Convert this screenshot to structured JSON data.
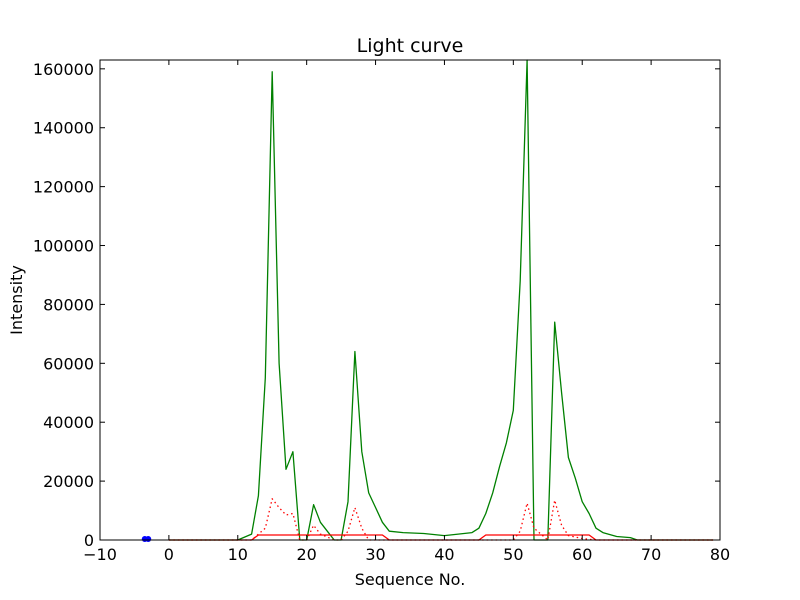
{
  "chart_data": {
    "type": "line",
    "title": "Light curve",
    "xlabel": "Sequence No.",
    "ylabel": "Intensity",
    "xlim": [
      -10,
      80
    ],
    "ylim": [
      0,
      163000
    ],
    "xticks": [
      -10,
      0,
      10,
      20,
      30,
      40,
      50,
      60,
      70,
      80
    ],
    "yticks": [
      0,
      20000,
      40000,
      60000,
      80000,
      100000,
      120000,
      140000,
      160000
    ],
    "grid": false,
    "series": [
      {
        "color": "#008000",
        "style": "solid",
        "points": [
          [
            0,
            0
          ],
          [
            10,
            0
          ],
          [
            12,
            2000
          ],
          [
            13,
            15000
          ],
          [
            14,
            55000
          ],
          [
            15,
            159000
          ],
          [
            16,
            60000
          ],
          [
            17,
            24000
          ],
          [
            18,
            30000
          ],
          [
            19,
            0
          ],
          [
            20,
            0
          ],
          [
            21,
            12000
          ],
          [
            22,
            6000
          ],
          [
            23,
            3000
          ],
          [
            24,
            0
          ],
          [
            25,
            0
          ],
          [
            26,
            13000
          ],
          [
            27,
            64000
          ],
          [
            28,
            30000
          ],
          [
            29,
            16000
          ],
          [
            30,
            11000
          ],
          [
            31,
            6000
          ],
          [
            32,
            3000
          ],
          [
            34,
            2500
          ],
          [
            37,
            2200
          ],
          [
            40,
            1500
          ],
          [
            44,
            2500
          ],
          [
            45,
            4000
          ],
          [
            46,
            9000
          ],
          [
            47,
            16000
          ],
          [
            48,
            25000
          ],
          [
            49,
            33000
          ],
          [
            50,
            44000
          ],
          [
            51,
            88000
          ],
          [
            52,
            163000
          ],
          [
            53,
            0
          ],
          [
            55,
            0
          ],
          [
            56,
            74000
          ],
          [
            57,
            50000
          ],
          [
            58,
            28000
          ],
          [
            59,
            21000
          ],
          [
            60,
            13000
          ],
          [
            61,
            9000
          ],
          [
            62,
            4000
          ],
          [
            63,
            2500
          ],
          [
            65,
            1200
          ],
          [
            67,
            800
          ],
          [
            68,
            0
          ],
          [
            79,
            0
          ]
        ]
      },
      {
        "color": "#ff0000",
        "style": "dotted",
        "points": [
          [
            0,
            0
          ],
          [
            12,
            0
          ],
          [
            14,
            4000
          ],
          [
            15,
            14000
          ],
          [
            16,
            11000
          ],
          [
            17,
            8500
          ],
          [
            18,
            9000
          ],
          [
            19,
            0
          ],
          [
            20,
            0
          ],
          [
            21,
            5000
          ],
          [
            22,
            2000
          ],
          [
            24,
            0
          ],
          [
            25,
            0
          ],
          [
            26,
            3000
          ],
          [
            27,
            11000
          ],
          [
            28,
            4000
          ],
          [
            29,
            0
          ],
          [
            45,
            0
          ],
          [
            48,
            0
          ],
          [
            50,
            0
          ],
          [
            51,
            3000
          ],
          [
            52,
            12500
          ],
          [
            53,
            4000
          ],
          [
            55,
            0
          ],
          [
            56,
            13500
          ],
          [
            57,
            5000
          ],
          [
            58,
            1500
          ],
          [
            60,
            500
          ],
          [
            62,
            0
          ],
          [
            79,
            0
          ]
        ]
      },
      {
        "color": "#ff0000",
        "style": "solid",
        "points": [
          [
            0,
            0
          ],
          [
            12,
            0
          ],
          [
            13,
            1700
          ],
          [
            30,
            1700
          ],
          [
            31,
            1700
          ],
          [
            32,
            0
          ],
          [
            45,
            0
          ],
          [
            46,
            1700
          ],
          [
            61,
            1700
          ],
          [
            62,
            0
          ],
          [
            79,
            0
          ]
        ]
      },
      {
        "color": "#0000ff",
        "style": "markers",
        "points": [
          [
            -3.5,
            200
          ],
          [
            -3,
            200
          ]
        ]
      }
    ]
  }
}
